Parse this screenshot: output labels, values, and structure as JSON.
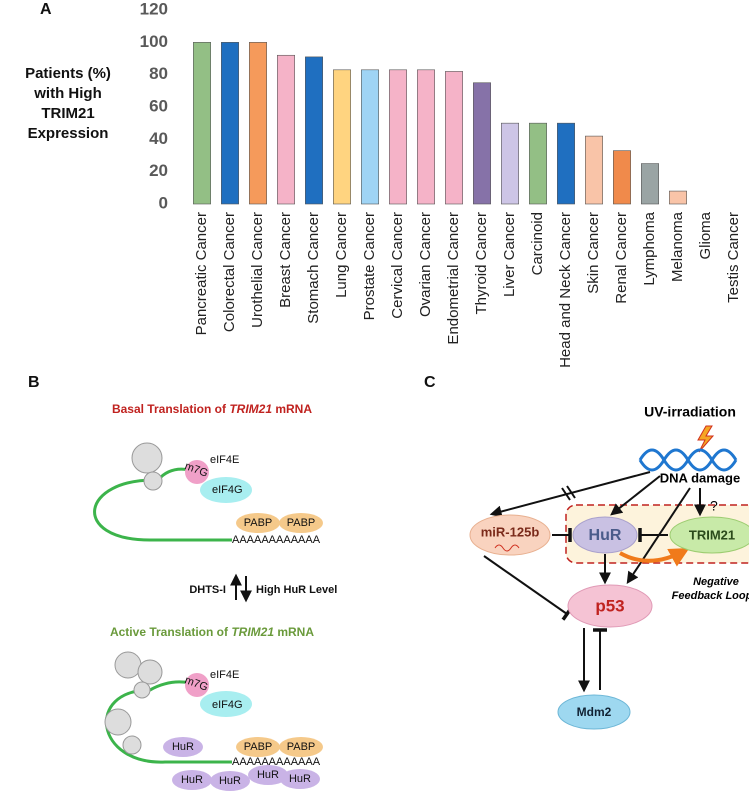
{
  "panels": {
    "a": "A",
    "b": "B",
    "c": "C"
  },
  "chart_data": {
    "type": "bar",
    "ylabel": [
      "Patients (%)",
      "with High",
      "TRIM21",
      "Expression"
    ],
    "categories": [
      "Pancreatic Cancer",
      "Colorectal Cancer",
      "Urothelial Cancer",
      "Breast Cancer",
      "Stomach Cancer",
      "Lung Cancer",
      "Prostate Cancer",
      "Cervical Cancer",
      "Ovarian Cancer",
      "Endometrial Cancer",
      "Thyroid Cancer",
      "Liver Cancer",
      "Carcinoid",
      "Head and Neck Cancer",
      "Skin Cancer",
      "Renal Cancer",
      "Lymphoma",
      "Melanoma",
      "Glioma",
      "Testis Cancer"
    ],
    "values": [
      100,
      100,
      100,
      92,
      91,
      83,
      83,
      83,
      83,
      82,
      75,
      50,
      50,
      50,
      42,
      33,
      25,
      8,
      0,
      0
    ],
    "colors": [
      "#93bf85",
      "#1f6fc0",
      "#f59a5b",
      "#f5b3c8",
      "#1f6fc0",
      "#ffd480",
      "#9fd4f5",
      "#f5b3c8",
      "#f5b3c8",
      "#f5b3c8",
      "#8672a8",
      "#cdc5e6",
      "#93bf85",
      "#1f6fc0",
      "#f9c4a8",
      "#f08a4b",
      "#9aa4a4",
      "#f9c4a8",
      "#f9c4a8",
      "#f9c4a8"
    ],
    "ylim": [
      0,
      120
    ],
    "yticks": [
      0,
      20,
      40,
      60,
      80,
      100,
      120
    ],
    "grid": false
  },
  "panel_b": {
    "basal_title": [
      "Basal Translation of ",
      "TRIM21",
      " mRNA"
    ],
    "active_title": [
      "Active Translation of ",
      "TRIM21",
      " mRNA"
    ],
    "up_label": "DHTS-I",
    "down_label": "High HuR Level",
    "top": {
      "cap": "m7G",
      "eif4e": "eIF4E",
      "eif4g": "eIF4G",
      "pabp": [
        "PABP",
        "PABP"
      ],
      "polya": "AAAAAAAAAAAA"
    },
    "bottom": {
      "cap": "m7G",
      "eif4e": "eIF4E",
      "eif4g": "eIF4G",
      "pabp": [
        "PABP",
        "PABP"
      ],
      "polya": "AAAAAAAAAAAA",
      "hur": [
        "HuR",
        "HuR",
        "HuR",
        "HuR",
        "HuR"
      ]
    }
  },
  "panel_c": {
    "uv": "UV-irradiation",
    "dna": "DNA damage",
    "question": "?",
    "mir": "miR-125b",
    "hur": "HuR",
    "trim21": "TRIM21",
    "p53": "p53",
    "mdm2": "Mdm2",
    "loop": [
      "Negative",
      "Feedback Loop"
    ]
  }
}
